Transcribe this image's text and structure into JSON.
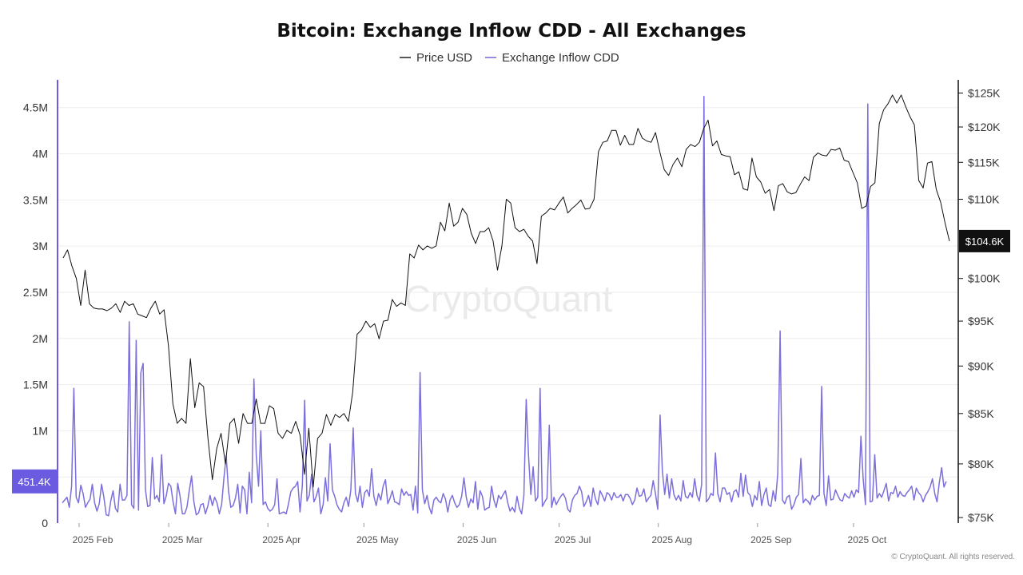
{
  "chart_data": {
    "type": "line",
    "title": "Bitcoin: Exchange Inflow CDD - All Exchanges",
    "legend": [
      "Price USD",
      "Exchange Inflow CDD"
    ],
    "colors": {
      "price": "#111111",
      "cdd": "#7b6fdb",
      "badge_price_bg": "#111111",
      "badge_cdd_bg": "#6a5be0",
      "grid": "#eeeeee"
    },
    "x_labels": [
      "2025 Feb",
      "2025 Mar",
      "2025 Apr",
      "2025 May",
      "2025 Jun",
      "2025 Jul",
      "2025 Aug",
      "2025 Sep",
      "2025 Oct"
    ],
    "x_range": [
      "2025-01-26",
      "2025-10-31"
    ],
    "left_axis": {
      "name": "Exchange Inflow CDD",
      "range": [
        0,
        4800000
      ],
      "ticks": [
        0,
        500000,
        1000000,
        1500000,
        2000000,
        2500000,
        3000000,
        3500000,
        4000000,
        4500000
      ],
      "tick_labels": [
        "0",
        "500K",
        "1M",
        "1.5M",
        "2M",
        "2.5M",
        "3M",
        "3.5M",
        "4M",
        "4.5M"
      ]
    },
    "right_axis": {
      "name": "Price USD",
      "scale": "log",
      "range": [
        74500,
        127000
      ],
      "ticks": [
        75000,
        80000,
        85000,
        90000,
        95000,
        100000,
        110000,
        115000,
        120000,
        125000
      ],
      "tick_labels": [
        "$75K",
        "$80K",
        "$85K",
        "$90K",
        "$95K",
        "$100K",
        "$110K",
        "$115K",
        "$120K",
        "$125K"
      ]
    },
    "current_price_label": "$104.6K",
    "current_price_value": 104600,
    "current_cdd_label": "451.4K",
    "current_cdd_value": 451400,
    "series": [
      {
        "name": "Price USD",
        "axis": "right",
        "values": [
          102500,
          103500,
          101500,
          100000,
          96800,
          101000,
          97000,
          96500,
          96400,
          96400,
          96200,
          96500,
          97000,
          96000,
          97300,
          96800,
          97000,
          95800,
          95600,
          95400,
          96500,
          97300,
          95800,
          96300,
          92200,
          86000,
          84000,
          84500,
          84000,
          90800,
          85600,
          88200,
          87800,
          82500,
          78500,
          81500,
          83000,
          80000,
          84000,
          84500,
          82000,
          85000,
          84000,
          84000,
          86500,
          84000,
          84000,
          85800,
          85500,
          83000,
          82500,
          83300,
          83000,
          84200,
          82800,
          79000,
          83500,
          77800,
          82500,
          83000,
          84900,
          83800,
          84900,
          84600,
          85000,
          84200,
          87200,
          93500,
          94000,
          95000,
          94300,
          94700,
          93000,
          95000,
          95100,
          97500,
          96700,
          97100,
          96800,
          103000,
          102500,
          104100,
          103500,
          104000,
          103700,
          104000,
          107000,
          105900,
          109500,
          106500,
          107000,
          108800,
          108000,
          105600,
          104300,
          105800,
          105800,
          106300,
          104600,
          101000,
          104000,
          110000,
          109500,
          106300,
          105800,
          106100,
          105200,
          104600,
          101800,
          107800,
          108200,
          108800,
          108600,
          109500,
          110300,
          108200,
          108800,
          109300,
          109900,
          108700,
          108800,
          110000,
          116500,
          117800,
          118000,
          119500,
          119500,
          117400,
          118800,
          117500,
          117500,
          119800,
          118400,
          118000,
          117800,
          119200,
          116400,
          114000,
          113200,
          114700,
          115600,
          114400,
          116800,
          117500,
          117200,
          117800,
          119800,
          121000,
          117300,
          118000,
          116100,
          115900,
          115800,
          113300,
          113700,
          111400,
          111200,
          115600,
          113000,
          112300,
          110800,
          111300,
          108500,
          111800,
          112100,
          111000,
          110700,
          110900,
          112000,
          113000,
          112500,
          115700,
          116300,
          116000,
          115900,
          116800,
          116700,
          117000,
          115300,
          115100,
          113600,
          112200,
          108800,
          109100,
          111700,
          112200,
          120500,
          122500,
          123400,
          124700,
          123500,
          124700,
          123000,
          121500,
          120300,
          112500,
          111500,
          114900,
          115100,
          111300,
          109600,
          106900,
          104600
        ]
      },
      {
        "name": "Exchange Inflow CDD",
        "axis": "left",
        "values": [
          220000,
          250000,
          280000,
          170000,
          400000,
          1460000,
          280000,
          220000,
          410000,
          320000,
          170000,
          220000,
          260000,
          420000,
          220000,
          130000,
          210000,
          420000,
          280000,
          90000,
          80000,
          240000,
          350000,
          160000,
          120000,
          420000,
          250000,
          250000,
          300000,
          2180000,
          200000,
          160000,
          1980000,
          140000,
          1630000,
          1730000,
          360000,
          180000,
          190000,
          710000,
          260000,
          300000,
          230000,
          740000,
          210000,
          290000,
          430000,
          400000,
          230000,
          100000,
          430000,
          290000,
          100000,
          100000,
          170000,
          350000,
          510000,
          230000,
          90000,
          110000,
          200000,
          210000,
          100000,
          180000,
          300000,
          190000,
          280000,
          220000,
          100000,
          200000,
          480000,
          730000,
          350000,
          170000,
          190000,
          270000,
          420000,
          110000,
          400000,
          360000,
          100000,
          550000,
          220000,
          1560000,
          740000,
          400000,
          1000000,
          200000,
          230000,
          160000,
          130000,
          150000,
          200000,
          480000,
          100000,
          110000,
          120000,
          100000,
          210000,
          340000,
          380000,
          400000,
          450000,
          120000,
          410000,
          1330000,
          240000,
          300000,
          530000,
          230000,
          290000,
          380000,
          100000,
          200000,
          490000,
          240000,
          860000,
          360000,
          290000,
          200000,
          150000,
          120000,
          220000,
          280000,
          180000,
          360000,
          1030000,
          320000,
          230000,
          400000,
          170000,
          330000,
          360000,
          290000,
          590000,
          290000,
          190000,
          320000,
          250000,
          400000,
          470000,
          210000,
          270000,
          350000,
          230000,
          220000,
          200000,
          370000,
          300000,
          340000,
          300000,
          310000,
          140000,
          400000,
          110000,
          1630000,
          360000,
          210000,
          300000,
          170000,
          100000,
          250000,
          280000,
          240000,
          220000,
          320000,
          260000,
          120000,
          250000,
          300000,
          220000,
          170000,
          200000,
          290000,
          490000,
          280000,
          170000,
          260000,
          220000,
          450000,
          150000,
          350000,
          290000,
          140000,
          160000,
          170000,
          400000,
          250000,
          170000,
          300000,
          260000,
          310000,
          350000,
          220000,
          130000,
          170000,
          120000,
          290000,
          160000,
          100000,
          300000,
          1340000,
          730000,
          310000,
          610000,
          240000,
          280000,
          1460000,
          180000,
          230000,
          270000,
          1060000,
          170000,
          280000,
          200000,
          250000,
          290000,
          320000,
          270000,
          150000,
          120000,
          250000,
          300000,
          320000,
          400000,
          340000,
          180000,
          230000,
          300000,
          180000,
          380000,
          260000,
          200000,
          350000,
          300000,
          240000,
          330000,
          310000,
          250000,
          330000,
          280000,
          280000,
          310000,
          240000,
          310000,
          310000,
          270000,
          200000,
          250000,
          380000,
          290000,
          300000,
          370000,
          230000,
          270000,
          300000,
          460000,
          320000,
          150000,
          1170000,
          560000,
          310000,
          530000,
          270000,
          480000,
          310000,
          250000,
          300000,
          240000,
          460000,
          290000,
          270000,
          330000,
          280000,
          480000,
          300000,
          240000,
          420000,
          4620000,
          230000,
          260000,
          320000,
          300000,
          760000,
          320000,
          230000,
          380000,
          380000,
          310000,
          330000,
          230000,
          340000,
          360000,
          280000,
          540000,
          290000,
          520000,
          330000,
          300000,
          180000,
          300000,
          250000,
          450000,
          190000,
          310000,
          380000,
          200000,
          180000,
          350000,
          240000,
          540000,
          2080000,
          250000,
          210000,
          280000,
          300000,
          150000,
          200000,
          280000,
          310000,
          700000,
          220000,
          260000,
          240000,
          200000,
          300000,
          250000,
          290000,
          300000,
          1480000,
          320000,
          190000,
          510000,
          250000,
          260000,
          360000,
          300000,
          250000,
          240000,
          320000,
          290000,
          270000,
          350000,
          280000,
          360000,
          330000,
          940000,
          480000,
          200000,
          4540000,
          230000,
          240000,
          740000,
          270000,
          320000,
          280000,
          350000,
          430000,
          240000,
          330000,
          320000,
          400000,
          280000,
          340000,
          300000,
          290000,
          330000,
          360000,
          400000,
          250000,
          380000,
          330000,
          300000,
          230000,
          300000,
          340000,
          390000,
          480000,
          320000,
          230000,
          440000,
          600000,
          390000,
          451400
        ]
      }
    ],
    "watermark": "CryptoQuant",
    "footer_text": "© CryptoQuant. All rights reserved."
  }
}
